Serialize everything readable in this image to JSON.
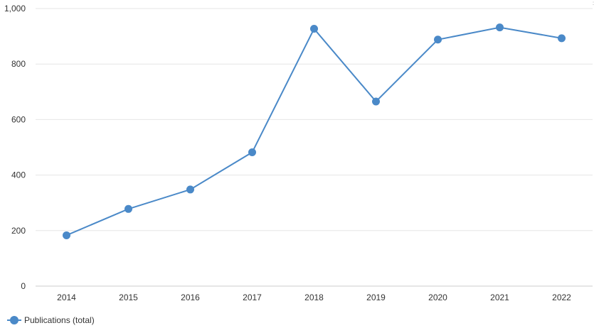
{
  "chart_data": {
    "type": "line",
    "categories": [
      "2014",
      "2015",
      "2016",
      "2017",
      "2018",
      "2019",
      "2020",
      "2021",
      "2022"
    ],
    "series": [
      {
        "name": "Publications (total)",
        "values": [
          183,
          278,
          348,
          482,
          927,
          665,
          888,
          932,
          893
        ]
      }
    ],
    "ylim": [
      0,
      1000
    ],
    "yticks": [
      0,
      200,
      400,
      600,
      800,
      1000
    ],
    "ytick_labels": [
      "0",
      "200",
      "400",
      "600",
      "800",
      "1,000"
    ],
    "grid": true,
    "legend_position": "bottom-left",
    "series_color": "#4a89c8"
  },
  "legend": {
    "label": "Publications (total)"
  }
}
